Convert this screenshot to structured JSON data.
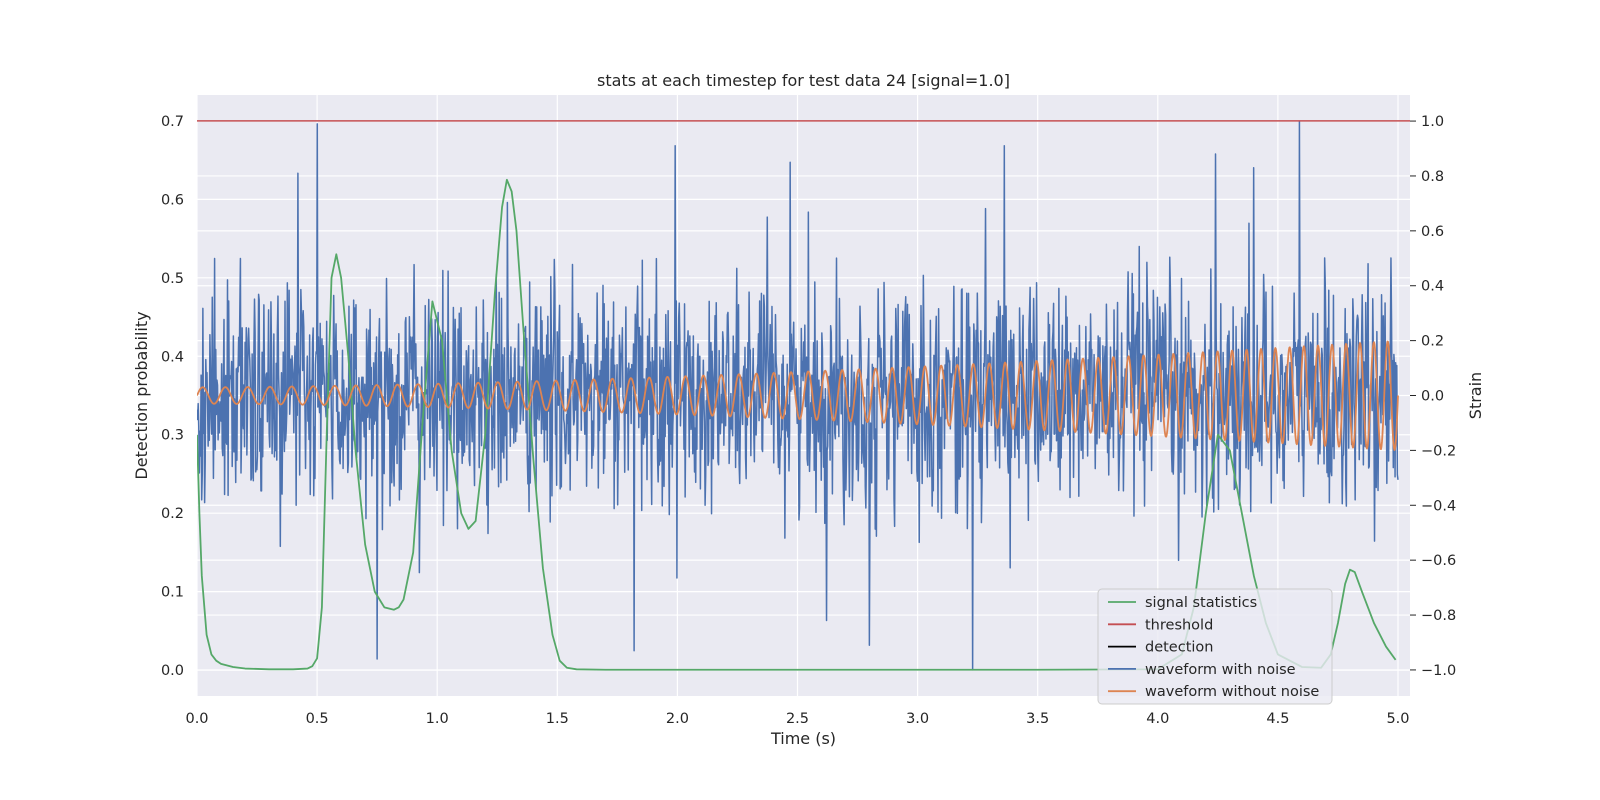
{
  "chart_data": {
    "type": "line",
    "title": "stats at each timestep for test data 24 [signal=1.0]",
    "xlabel": "Time (s)",
    "ylabel": "Detection probability",
    "y2label": "Strain",
    "xlim": [
      0.0,
      5.05
    ],
    "ylim": [
      -0.033,
      0.733
    ],
    "y2lim": [
      -1.095,
      1.095
    ],
    "x_ticks": [
      "0.0",
      "0.5",
      "1.0",
      "1.5",
      "2.0",
      "2.5",
      "3.0",
      "3.5",
      "4.0",
      "4.5",
      "5.0"
    ],
    "y_ticks": [
      "0.0",
      "0.1",
      "0.2",
      "0.3",
      "0.4",
      "0.5",
      "0.6",
      "0.7"
    ],
    "y2_ticks": [
      "−1.0",
      "−0.8",
      "−0.6",
      "−0.4",
      "−0.2",
      "0.0",
      "0.2",
      "0.4",
      "0.6",
      "0.8",
      "1.0"
    ],
    "grid": true,
    "legend_position": "lower right",
    "colors": {
      "background": "#eaeaf2",
      "grid": "#ffffff",
      "signal_statistics": "#55a868",
      "threshold": "#c44e52",
      "detection": "#000000",
      "waveform_noise": "#4c72b0",
      "waveform_clean": "#dd8452"
    },
    "series": [
      {
        "name": "signal statistics",
        "axis": "left",
        "x": [
          0.0,
          0.01,
          0.02,
          0.04,
          0.06,
          0.08,
          0.1,
          0.15,
          0.2,
          0.3,
          0.4,
          0.46,
          0.48,
          0.5,
          0.52,
          0.54,
          0.56,
          0.58,
          0.6,
          0.63,
          0.66,
          0.7,
          0.74,
          0.78,
          0.82,
          0.84,
          0.86,
          0.9,
          0.94,
          0.98,
          1.02,
          1.06,
          1.1,
          1.13,
          1.16,
          1.2,
          1.24,
          1.27,
          1.29,
          1.31,
          1.33,
          1.36,
          1.4,
          1.44,
          1.48,
          1.51,
          1.54,
          1.58,
          1.7,
          2.0,
          2.5,
          3.0,
          3.5,
          4.0,
          4.1,
          4.15,
          4.2,
          4.25,
          4.3,
          4.35,
          4.4,
          4.45,
          4.5,
          4.6,
          4.68,
          4.72,
          4.75,
          4.78,
          4.8,
          4.82,
          4.85,
          4.9,
          4.95,
          4.99
        ],
        "y": [
          0.3,
          0.2,
          0.12,
          0.045,
          0.02,
          0.012,
          0.008,
          0.004,
          0.002,
          0.001,
          0.001,
          0.002,
          0.005,
          0.015,
          0.08,
          0.3,
          0.5,
          0.53,
          0.5,
          0.4,
          0.28,
          0.16,
          0.1,
          0.08,
          0.077,
          0.08,
          0.09,
          0.15,
          0.32,
          0.47,
          0.42,
          0.28,
          0.2,
          0.18,
          0.19,
          0.3,
          0.48,
          0.59,
          0.625,
          0.61,
          0.56,
          0.43,
          0.27,
          0.13,
          0.045,
          0.012,
          0.003,
          0.001,
          0.0005,
          0.0005,
          0.0005,
          0.0005,
          0.0005,
          0.001,
          0.02,
          0.08,
          0.2,
          0.3,
          0.28,
          0.2,
          0.12,
          0.06,
          0.02,
          0.004,
          0.003,
          0.02,
          0.06,
          0.11,
          0.128,
          0.125,
          0.1,
          0.06,
          0.03,
          0.013
        ]
      },
      {
        "name": "threshold",
        "axis": "left",
        "x": [
          0.0,
          5.05
        ],
        "y": [
          0.7,
          0.7
        ]
      },
      {
        "name": "detection",
        "axis": "left",
        "x": [],
        "y": []
      },
      {
        "name": "waveform with noise",
        "axis": "right",
        "generated": "noise",
        "x_range": [
          0.0,
          5.0
        ],
        "samples": 2048,
        "std": 0.2,
        "spikes": [
          {
            "x": 0.5,
            "y": 0.99
          },
          {
            "x": 0.42,
            "y": 0.81
          },
          {
            "x": 0.75,
            "y": -0.96
          },
          {
            "x": 1.82,
            "y": -0.93
          },
          {
            "x": 2.62,
            "y": -0.82
          },
          {
            "x": 2.8,
            "y": -0.91
          },
          {
            "x": 3.23,
            "y": -1.0
          },
          {
            "x": 4.59,
            "y": 1.0
          },
          {
            "x": 1.99,
            "y": 0.91
          },
          {
            "x": 2.47,
            "y": 0.85
          },
          {
            "x": 3.36,
            "y": 0.91
          },
          {
            "x": 4.24,
            "y": 0.88
          },
          {
            "x": 4.4,
            "y": 0.83
          }
        ]
      },
      {
        "name": "waveform without noise",
        "axis": "right",
        "generated": "chirp",
        "x_range": [
          0.0,
          5.0
        ],
        "amplitude_start": 0.03,
        "amplitude_end": 0.2,
        "frequency_start": 10.5,
        "frequency_end": 17.5
      }
    ]
  }
}
